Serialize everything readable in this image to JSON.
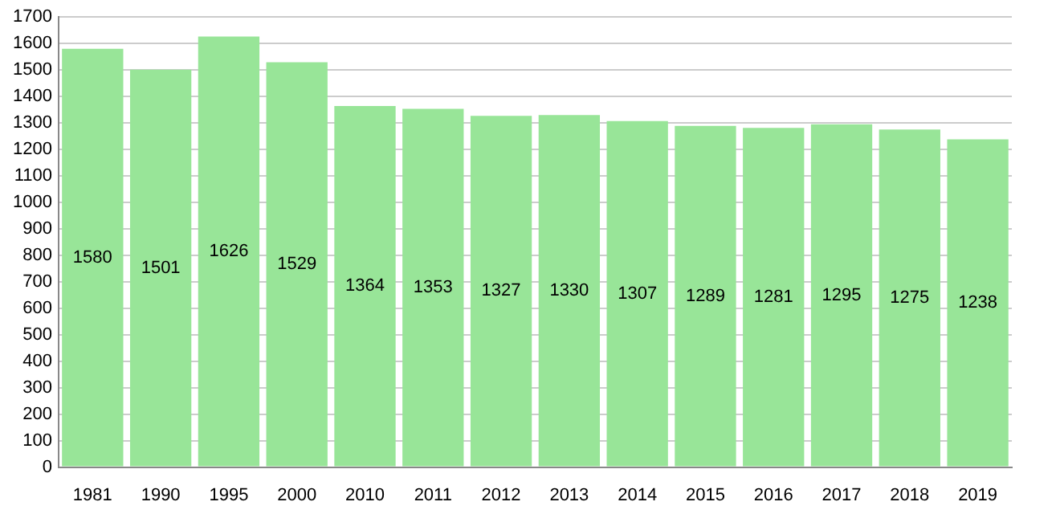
{
  "chart_data": {
    "type": "bar",
    "categories": [
      "1981",
      "1990",
      "1995",
      "2000",
      "2010",
      "2011",
      "2012",
      "2013",
      "2014",
      "2015",
      "2016",
      "2017",
      "2018",
      "2019"
    ],
    "values": [
      1580,
      1501,
      1626,
      1529,
      1364,
      1353,
      1327,
      1330,
      1307,
      1289,
      1281,
      1295,
      1275,
      1238
    ],
    "color": "#98e598",
    "ylim": [
      0,
      1700
    ],
    "yticks": [
      0,
      100,
      200,
      300,
      400,
      500,
      600,
      700,
      800,
      900,
      1000,
      1100,
      1200,
      1300,
      1400,
      1500,
      1600,
      1700
    ],
    "grid": "y",
    "data_labels": true,
    "legend": false
  }
}
